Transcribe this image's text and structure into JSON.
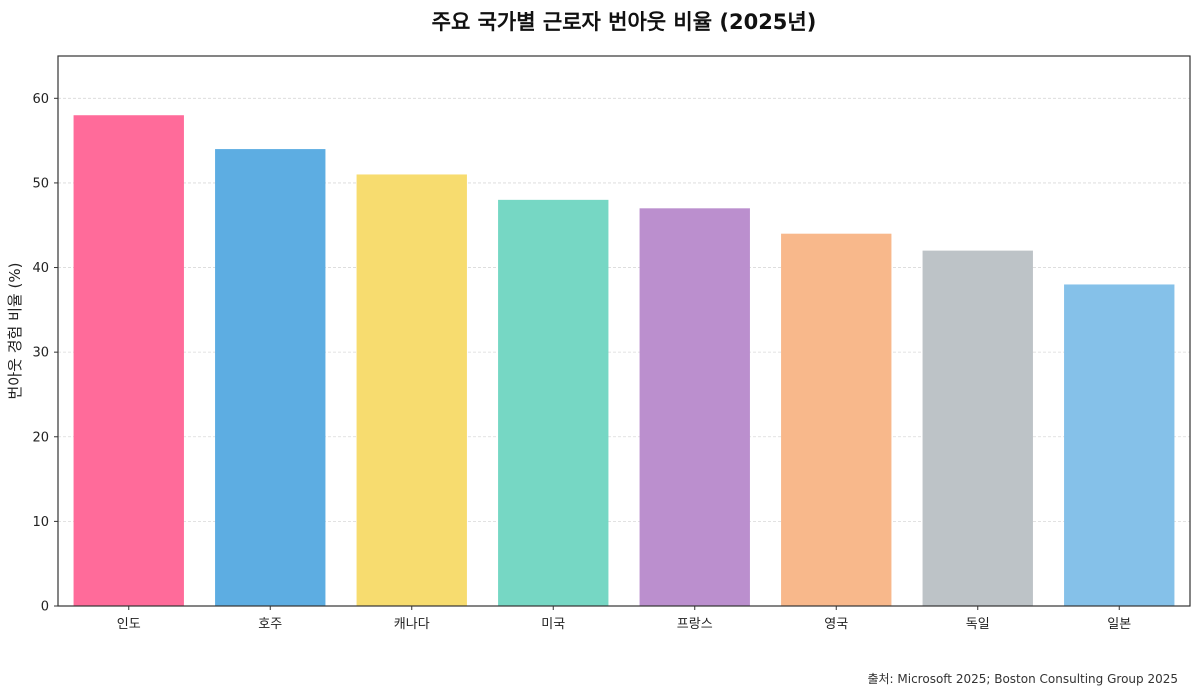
{
  "chart_data": {
    "type": "bar",
    "title": "주요 국가별 근로자 번아웃 비율 (2025년)",
    "xlabel": "",
    "ylabel": "번아웃 경험 비율 (%)",
    "categories": [
      "인도",
      "호주",
      "캐나다",
      "미국",
      "프랑스",
      "영국",
      "독일",
      "일본"
    ],
    "values": [
      58,
      54,
      51,
      48,
      47,
      44,
      42,
      38
    ],
    "colors": [
      "#ff6b9a",
      "#5dade2",
      "#f7dc6f",
      "#76d7c4",
      "#bb8fce",
      "#f8b88b",
      "#bdc3c7",
      "#85c1e9"
    ],
    "ylim": [
      0,
      65
    ],
    "yticks": [
      0,
      10,
      20,
      30,
      40,
      50,
      60
    ],
    "grid": "horizontal",
    "source": "출처: Microsoft 2025; Boston Consulting Group 2025"
  }
}
